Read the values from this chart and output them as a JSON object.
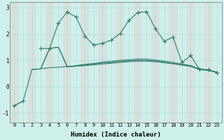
{
  "xlabel": "Humidex (Indice chaleur)",
  "x": [
    0,
    1,
    2,
    3,
    4,
    5,
    6,
    7,
    8,
    9,
    10,
    11,
    12,
    13,
    14,
    15,
    16,
    17,
    18,
    19,
    20,
    21,
    22,
    23
  ],
  "series": [
    {
      "y": [
        -0.72,
        -0.55,
        0.65,
        0.68,
        0.72,
        0.74,
        0.76,
        0.78,
        0.8,
        0.83,
        0.86,
        0.89,
        0.92,
        0.95,
        0.97,
        0.97,
        0.95,
        0.91,
        0.87,
        0.82,
        0.77,
        0.65,
        0.61,
        0.55
      ],
      "has_markers": false
    },
    {
      "y": [
        null,
        null,
        0.65,
        0.68,
        1.45,
        1.5,
        0.76,
        0.78,
        0.82,
        0.86,
        0.9,
        0.92,
        0.96,
        0.98,
        1.0,
        1.0,
        0.97,
        0.93,
        0.88,
        0.83,
        0.78,
        0.68,
        0.62,
        0.55
      ],
      "has_markers": false
    },
    {
      "y": [
        null,
        null,
        null,
        0.68,
        1.45,
        1.5,
        0.76,
        0.8,
        0.85,
        0.88,
        0.93,
        0.96,
        1.0,
        1.02,
        1.05,
        1.05,
        1.01,
        0.97,
        0.92,
        0.86,
        0.8,
        0.67,
        0.63,
        0.55
      ],
      "has_markers": false
    },
    {
      "y": [
        -0.72,
        -0.55,
        null,
        1.45,
        1.45,
        2.42,
        2.83,
        2.65,
        1.92,
        1.58,
        1.65,
        1.77,
        2.02,
        2.52,
        2.82,
        2.85,
        2.2,
        1.73,
        1.88,
        0.92,
        1.18,
        0.65,
        0.65,
        0.52
      ],
      "has_markers": true
    }
  ],
  "line_color": "#2e7d6e",
  "background_color": "#cef0eb",
  "grid_color": "#e8e8e8",
  "ylim": [
    -1.35,
    3.2
  ],
  "yticks": [
    -1,
    0,
    1,
    2,
    3
  ],
  "xlim": [
    -0.5,
    23.5
  ]
}
